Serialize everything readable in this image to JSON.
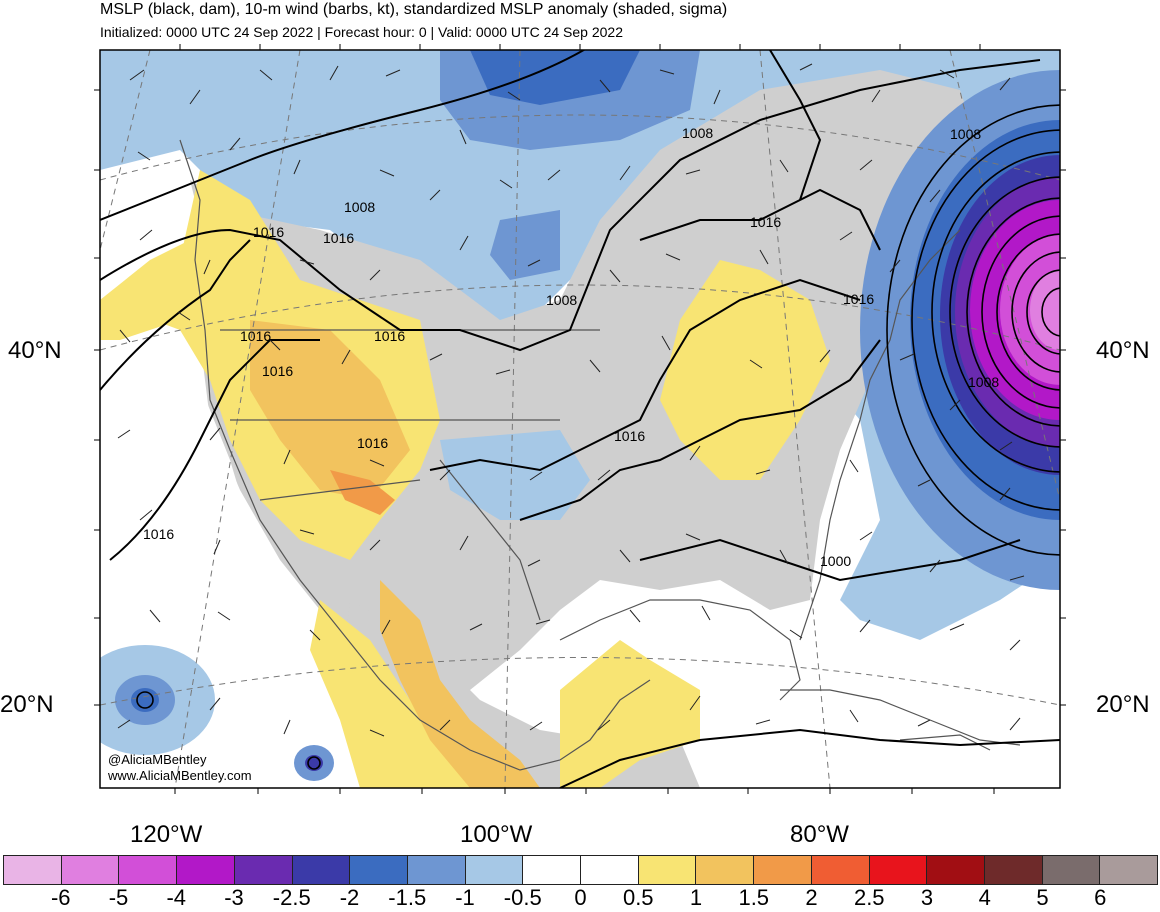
{
  "title": "MSLP (black, dam), 10-m wind (barbs, kt), standardized MSLP anomaly (shaded, sigma)",
  "subtitle": "Initialized: 0000 UTC 24 Sep 2022 | Forecast hour: 0 | Valid: 0000 UTC 24 Sep 2022",
  "lat_labels": {
    "lat40_left": "40°N",
    "lat40_right": "40°N",
    "lat20_left": "20°N",
    "lat20_right": "20°N"
  },
  "lon_labels": {
    "lon120": "120°W",
    "lon100": "100°W",
    "lon80": "80°W"
  },
  "contour_labels": [
    "1008",
    "1008",
    "1008",
    "1008",
    "1016",
    "1016",
    "1016",
    "1016",
    "1016",
    "1016",
    "1016",
    "1016",
    "1016",
    "1016",
    "1000",
    "1008"
  ],
  "credits": {
    "handle": "@AliciaMBentley",
    "website": "www.AliciaMBentley.com"
  },
  "colorbar": {
    "labels": [
      "-6",
      "-5",
      "-4",
      "-3",
      "-2.5",
      "-2",
      "-1.5",
      "-1",
      "-0.5",
      "0",
      "0.5",
      "1",
      "1.5",
      "2",
      "2.5",
      "3",
      "4",
      "5",
      "6"
    ],
    "colors": [
      "#e9b4e6",
      "#e07fe0",
      "#d24fd8",
      "#b218c8",
      "#6a2bb0",
      "#3b3aa8",
      "#3b6cc0",
      "#6e96d2",
      "#a6c8e6",
      "#ffffff",
      "#ffffff",
      "#f8e473",
      "#f2c35e",
      "#f19a48",
      "#f05d33",
      "#e8141c",
      "#a10e13",
      "#6e2a2a",
      "#7a6c6c",
      "#a99b9b"
    ]
  },
  "colors": {
    "land_neutral": "#cfcfcf",
    "anomaly_neg_light": "#a6c8e6",
    "anomaly_neg_mid": "#6e96d2",
    "anomaly_neg_strong": "#3b6cc0",
    "anomaly_pos_light": "#f8e473",
    "anomaly_pos_mid": "#f2c35e",
    "anomaly_pos_strong": "#f19a48",
    "low_center": "#b218c8"
  }
}
